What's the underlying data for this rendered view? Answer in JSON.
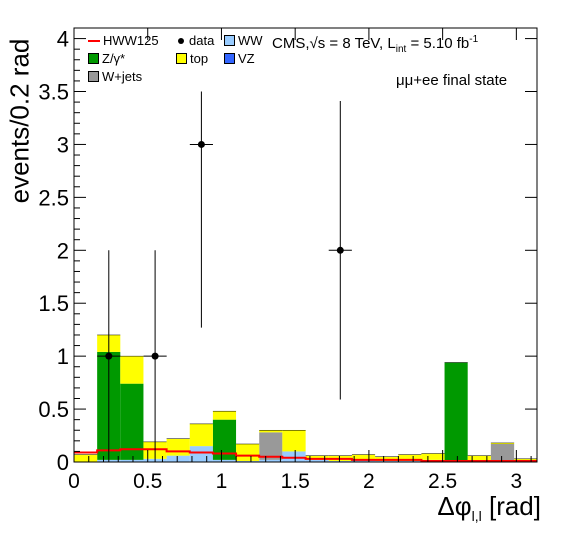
{
  "chart_data": {
    "type": "bar",
    "stacked": true,
    "xlabel_main": "Δφ",
    "xlabel_sub": "l,l",
    "xlabel_unit": "[rad]",
    "ylabel": "events/0.2 rad",
    "xlim": [
      0,
      3.14
    ],
    "ylim": [
      0,
      4.1
    ],
    "xticks": [
      "0",
      "0.5",
      "1",
      "1.5",
      "2",
      "2.5",
      "3"
    ],
    "yticks": [
      "0",
      "0.5",
      "1",
      "1.5",
      "2",
      "2.5",
      "3",
      "3.5",
      "4"
    ],
    "bin_edges": [
      0.0,
      0.157,
      0.314,
      0.471,
      0.628,
      0.785,
      0.942,
      1.099,
      1.256,
      1.413,
      1.571,
      1.728,
      1.885,
      2.042,
      2.199,
      2.356,
      2.513,
      2.67,
      2.827,
      2.985,
      3.142
    ],
    "series": [
      {
        "name": "VZ",
        "color": "#3366ff",
        "values": [
          0,
          0,
          0,
          0,
          0,
          0,
          0,
          0,
          0,
          0,
          0,
          0,
          0,
          0,
          0,
          0,
          0,
          0,
          0,
          0
        ]
      },
      {
        "name": "WW",
        "color": "#99ccff",
        "values": [
          0,
          0.02,
          0.02,
          0.03,
          0.06,
          0.15,
          0.02,
          0.01,
          0.02,
          0.1,
          0.02,
          0.01,
          0.02,
          0.01,
          0.01,
          0.02,
          0.01,
          0.01,
          0.01,
          0.01
        ]
      },
      {
        "name": "W+jets",
        "color": "#999999",
        "values": [
          0,
          0,
          0,
          0,
          0,
          0,
          0,
          0,
          0.26,
          0,
          0,
          0,
          0,
          0,
          0,
          0,
          0,
          0,
          0.16,
          0
        ]
      },
      {
        "name": "Z/γ*",
        "color": "#009900",
        "values": [
          0,
          1.02,
          0.72,
          0,
          0,
          0,
          0.38,
          0,
          0,
          0,
          0,
          0,
          0,
          0,
          0,
          0,
          0.93,
          0,
          0,
          0
        ]
      },
      {
        "name": "top",
        "color": "#ffff00",
        "values": [
          0.07,
          0.16,
          0.26,
          0.16,
          0.16,
          0.21,
          0.08,
          0.16,
          0.02,
          0.2,
          0.04,
          0.05,
          0.05,
          0.04,
          0.06,
          0.06,
          0,
          0.05,
          0.01,
          0.02
        ]
      }
    ],
    "signal": {
      "name": "HWW125",
      "color": "#ff0000",
      "values": [
        0.09,
        0.11,
        0.12,
        0.12,
        0.1,
        0.09,
        0.08,
        0.06,
        0.05,
        0.04,
        0.03,
        0.03,
        0.02,
        0.02,
        0.02,
        0.01,
        0.01,
        0.01,
        0.01,
        0.01
      ]
    },
    "data_points": {
      "name": "data",
      "x": [
        0.236,
        0.55,
        0.864,
        1.806
      ],
      "y": [
        1,
        1,
        3,
        2
      ],
      "yerr_low": [
        1,
        1,
        1.73,
        1.41
      ],
      "yerr_high": [
        1,
        1,
        0.5,
        1.41
      ]
    },
    "grid": false,
    "legend_position": "top-left"
  },
  "legend": {
    "hww": "HWW125",
    "data": "data",
    "ww": "WW",
    "zg": "Z/γ*",
    "top": "top",
    "vz": "VZ",
    "wjets": "W+jets"
  },
  "annotation": {
    "cms_prefix": "CMS,",
    "sqrt": "√s = 8 TeV, L",
    "int_sub": "int",
    "lumi": " = 5.10 fb",
    "lumi_sup": "-1",
    "state": "μμ+ee final state"
  }
}
